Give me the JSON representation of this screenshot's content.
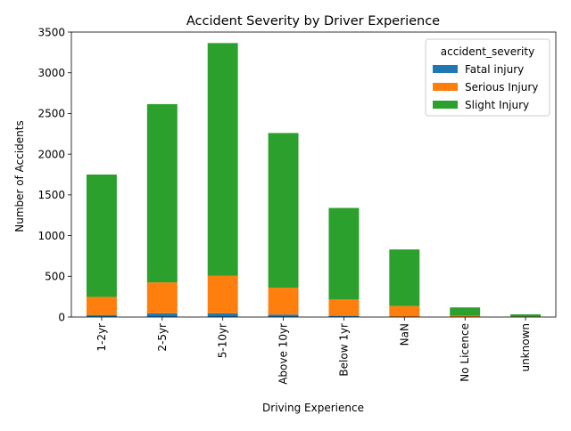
{
  "chart_data": {
    "type": "bar",
    "stacked": true,
    "title": "Accident Severity by Driver Experience",
    "xlabel": "Driving Experience",
    "ylabel": "Number of Accidents",
    "ylim": [
      0,
      3500
    ],
    "yticks": [
      0,
      500,
      1000,
      1500,
      2000,
      2500,
      3000,
      3500
    ],
    "categories": [
      "1-2yr",
      "2-5yr",
      "5-10yr",
      "Above 10yr",
      "Below 1yr",
      "NaN",
      "No Licence",
      "unknown"
    ],
    "series": [
      {
        "name": "Fatal injury",
        "color": "#1f77b4",
        "values": [
          25,
          45,
          45,
          30,
          15,
          5,
          2,
          1
        ]
      },
      {
        "name": "Serious Injury",
        "color": "#ff7f0e",
        "values": [
          222,
          380,
          460,
          330,
          200,
          130,
          15,
          5
        ]
      },
      {
        "name": "Slight Injury",
        "color": "#2ca02c",
        "values": [
          1503,
          2190,
          2860,
          1900,
          1125,
          695,
          101,
          27
        ]
      }
    ],
    "legend": {
      "title": "accident_severity",
      "position": "top-right"
    },
    "grid": false
  }
}
